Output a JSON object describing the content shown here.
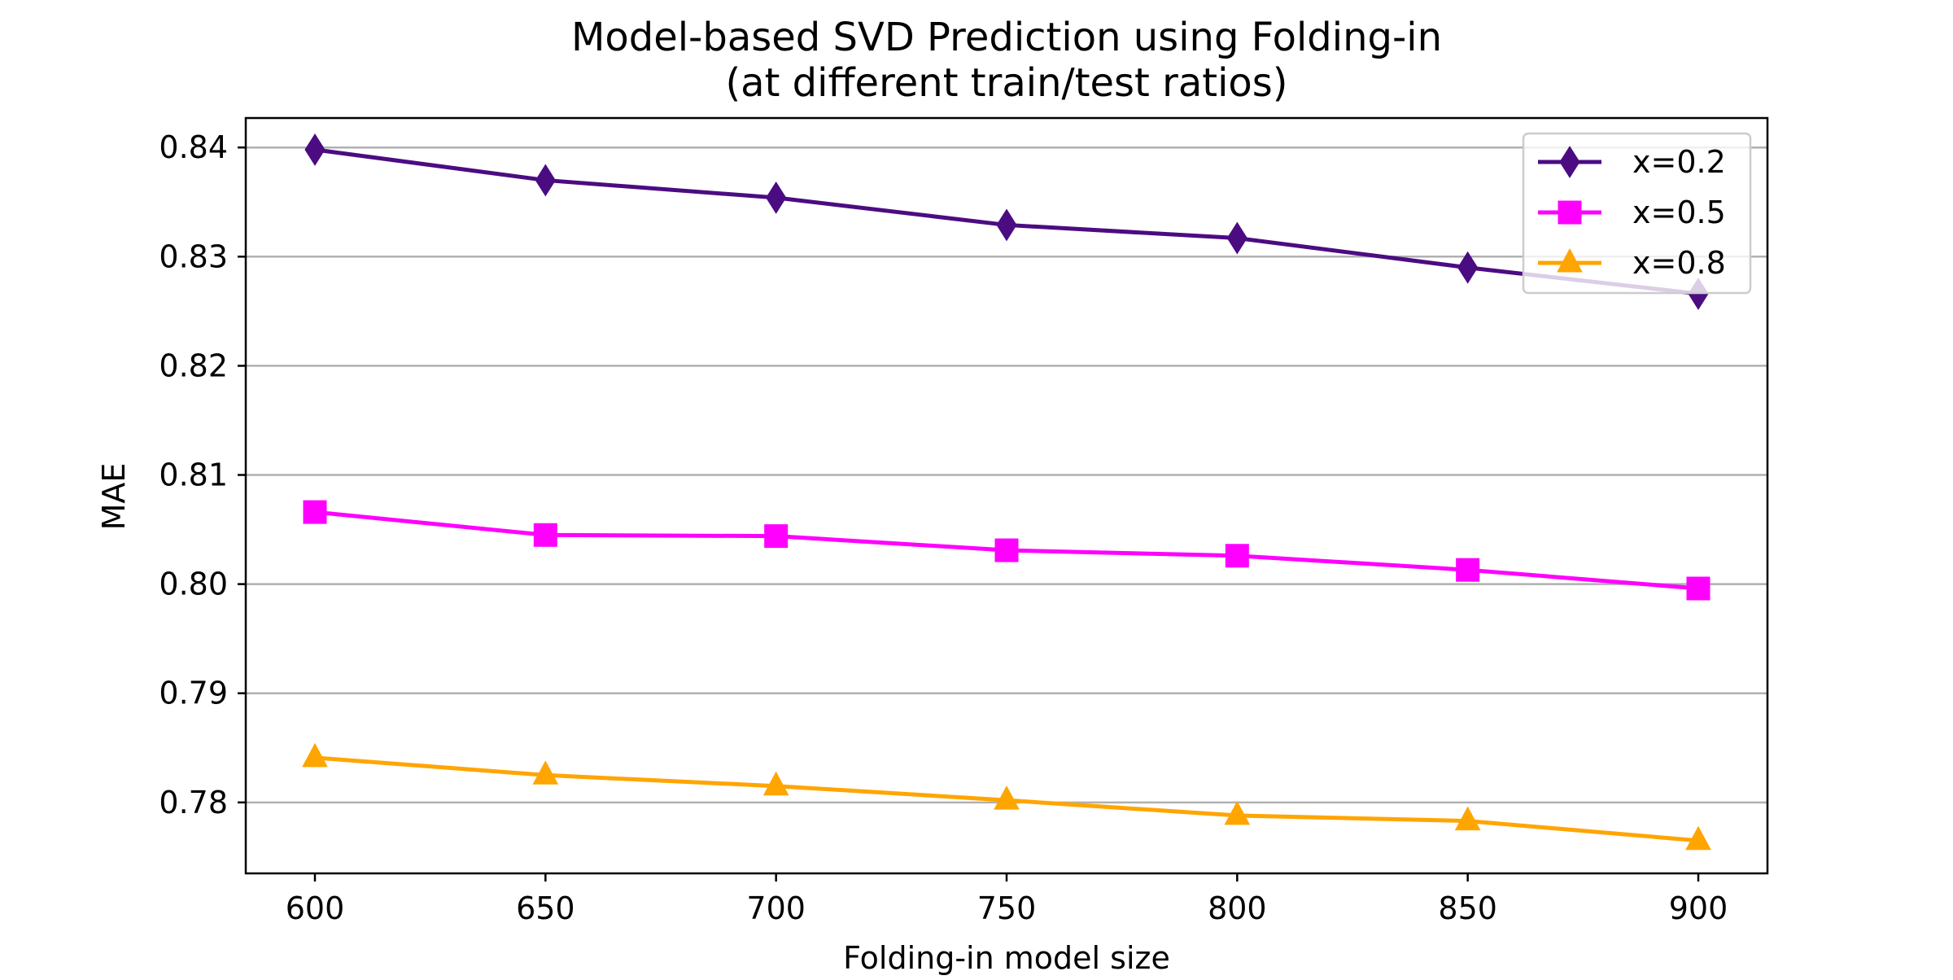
{
  "chart_data": {
    "type": "line",
    "title": "Model-based SVD Prediction using Folding-in",
    "subtitle": "(at different train/test ratios)",
    "xlabel": "Folding-in model size",
    "ylabel": "MAE",
    "x": [
      600,
      650,
      700,
      750,
      800,
      850,
      900
    ],
    "x_ticks": [
      600,
      650,
      700,
      750,
      800,
      850,
      900
    ],
    "y_ticks": [
      0.78,
      0.79,
      0.8,
      0.81,
      0.82,
      0.83,
      0.84
    ],
    "y_tick_labels": [
      "0.78",
      "0.79",
      "0.80",
      "0.81",
      "0.82",
      "0.83",
      "0.84"
    ],
    "xlim": [
      585,
      915
    ],
    "ylim": [
      0.7735,
      0.8427
    ],
    "grid": "horizontal",
    "legend_position": "top-right",
    "series": [
      {
        "name": "x=0.2",
        "color": "#4b0c82",
        "marker": "diamond",
        "values": [
          0.8398,
          0.837,
          0.8354,
          0.8329,
          0.8317,
          0.829,
          0.8266
        ]
      },
      {
        "name": "x=0.5",
        "color": "#ff00ff",
        "marker": "square",
        "values": [
          0.8066,
          0.8045,
          0.8044,
          0.8031,
          0.8026,
          0.8013,
          0.7996
        ]
      },
      {
        "name": "x=0.8",
        "color": "#ffa500",
        "marker": "triangle",
        "values": [
          0.7841,
          0.7825,
          0.7815,
          0.7802,
          0.7788,
          0.7783,
          0.7765
        ]
      }
    ]
  }
}
